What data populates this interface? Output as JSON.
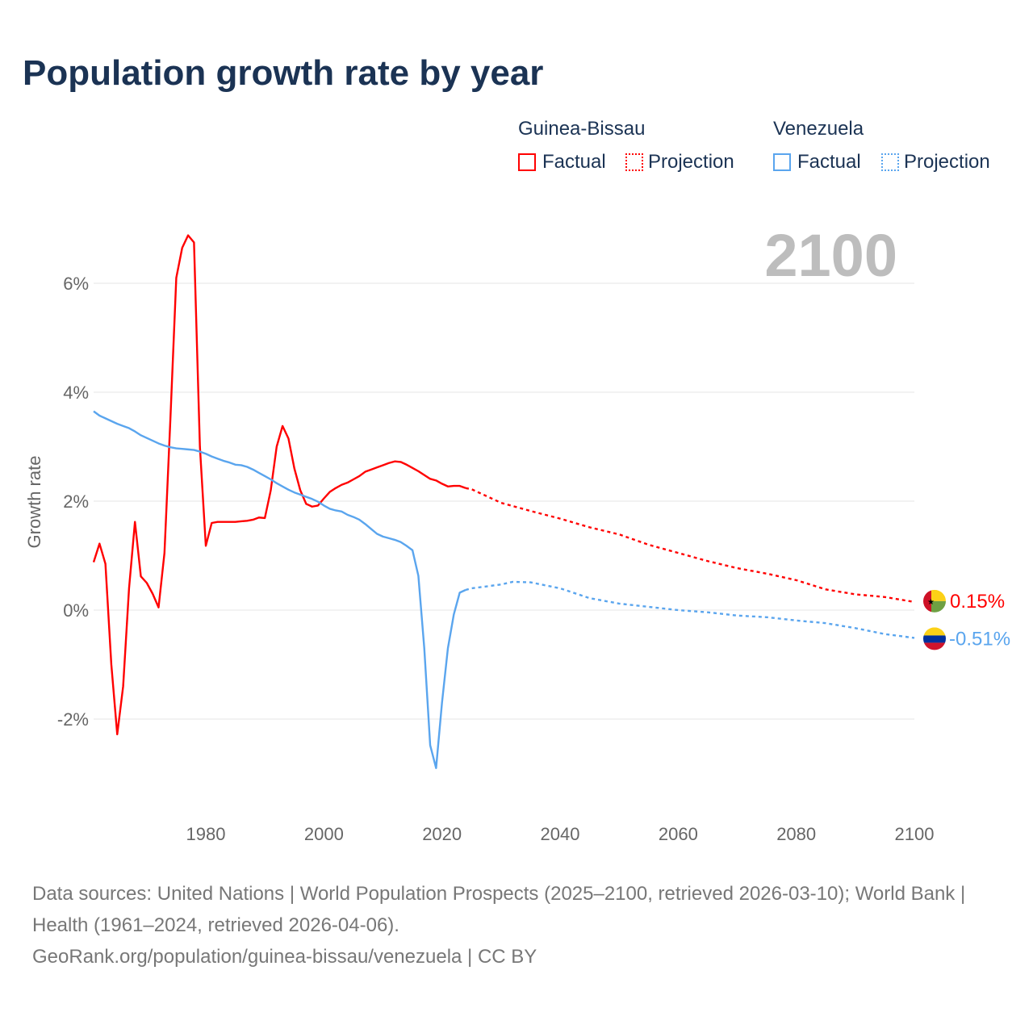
{
  "title": "Population growth rate by year",
  "legend": {
    "groups": [
      {
        "name": "Guinea-Bissau",
        "factual": "Factual",
        "projection": "Projection",
        "color": "#ff0000"
      },
      {
        "name": "Venezuela",
        "factual": "Factual",
        "projection": "Projection",
        "color": "#5aa5ee"
      }
    ]
  },
  "year_label": "2100",
  "chart_data": {
    "type": "line",
    "title": "Population growth rate by year",
    "xlabel": "",
    "ylabel": "Growth rate",
    "xlim": [
      1961,
      2100
    ],
    "ylim": [
      -3.5,
      7.5
    ],
    "xticks": [
      1980,
      2000,
      2020,
      2040,
      2060,
      2080,
      2100
    ],
    "xtick_labels": [
      "1980",
      "2000",
      "2020",
      "2040",
      "2060",
      "2080",
      "2100"
    ],
    "yticks": [
      -2,
      0,
      2,
      4,
      6
    ],
    "ytick_labels": [
      "-2%",
      "0%",
      "2%",
      "4%",
      "6%"
    ],
    "series": [
      {
        "name": "Guinea-Bissau",
        "color": "#ff0000",
        "end_label": "0.15%",
        "factual": {
          "start": 1961,
          "values": [
            0.88,
            1.22,
            0.85,
            -1.0,
            -2.28,
            -1.4,
            0.4,
            1.62,
            0.62,
            0.5,
            0.3,
            0.05,
            1.05,
            3.5,
            6.1,
            6.65,
            6.88,
            6.75,
            3.0,
            1.18,
            1.6,
            1.62,
            1.62,
            1.62,
            1.62,
            1.63,
            1.64,
            1.66,
            1.7,
            1.69,
            2.2,
            3.0,
            3.38,
            3.15,
            2.6,
            2.2,
            1.95,
            1.9,
            1.92,
            2.05,
            2.17,
            2.24,
            2.3,
            2.34,
            2.4,
            2.46,
            2.54,
            2.58,
            2.62,
            2.66,
            2.7,
            2.73,
            2.72,
            2.67,
            2.61,
            2.55,
            2.48,
            2.41,
            2.38,
            2.32,
            2.27,
            2.28,
            2.28,
            2.24
          ]
        },
        "projection": {
          "x": [
            2024,
            2025,
            2030,
            2035,
            2040,
            2045,
            2050,
            2055,
            2060,
            2065,
            2070,
            2075,
            2080,
            2085,
            2090,
            2095,
            2100
          ],
          "values": [
            2.24,
            2.22,
            1.97,
            1.82,
            1.68,
            1.52,
            1.39,
            1.2,
            1.05,
            0.9,
            0.77,
            0.67,
            0.55,
            0.38,
            0.29,
            0.24,
            0.15
          ]
        }
      },
      {
        "name": "Venezuela",
        "color": "#5aa5ee",
        "end_label": "-0.51%",
        "factual": {
          "start": 1961,
          "values": [
            3.65,
            3.57,
            3.52,
            3.47,
            3.42,
            3.38,
            3.34,
            3.28,
            3.21,
            3.16,
            3.11,
            3.06,
            3.02,
            2.99,
            2.97,
            2.96,
            2.95,
            2.94,
            2.91,
            2.87,
            2.82,
            2.78,
            2.74,
            2.71,
            2.67,
            2.66,
            2.63,
            2.58,
            2.52,
            2.46,
            2.4,
            2.33,
            2.27,
            2.21,
            2.16,
            2.12,
            2.08,
            2.04,
            1.99,
            1.92,
            1.86,
            1.83,
            1.81,
            1.75,
            1.71,
            1.66,
            1.58,
            1.49,
            1.4,
            1.35,
            1.32,
            1.29,
            1.25,
            1.18,
            1.1,
            0.63,
            -0.7,
            -2.48,
            -2.9,
            -1.7,
            -0.7,
            -0.08,
            0.32,
            0.37
          ]
        },
        "projection": {
          "x": [
            2024,
            2025,
            2030,
            2032,
            2035,
            2040,
            2045,
            2050,
            2055,
            2060,
            2065,
            2070,
            2075,
            2080,
            2085,
            2090,
            2095,
            2100
          ],
          "values": [
            0.37,
            0.4,
            0.47,
            0.52,
            0.51,
            0.4,
            0.22,
            0.12,
            0.06,
            0.0,
            -0.04,
            -0.1,
            -0.13,
            -0.19,
            -0.24,
            -0.33,
            -0.44,
            -0.51
          ]
        }
      }
    ]
  },
  "footer": {
    "line1": "Data sources: United Nations | World Population Prospects (2025–2100, retrieved 2026-03-10); World Bank | Health (1961–2024, retrieved 2026-04-06).",
    "line2": "GeoRank.org/population/guinea-bissau/venezuela | CC BY"
  }
}
